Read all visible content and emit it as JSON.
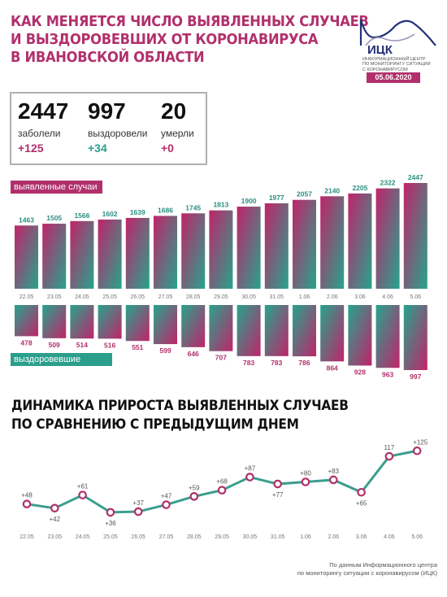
{
  "header": {
    "title_lines": [
      "КАК МЕНЯЕТСЯ ЧИСЛО ВЫЯВЛЕННЫХ СЛУЧАЕВ",
      "И ВЫЗДОРОВЕВШИХ ОТ КОРОНАВИРУСА",
      "В ИВАНОВСКОЙ ОБЛАСТИ"
    ],
    "logo_text": "ИЦК",
    "logo_sub": [
      "ИНФОРМАЦИОННЫЙ ЦЕНТР",
      "ПО МОНИТОРИНГУ СИТУАЦИИ",
      "С КОРОНАВИРУСОМ"
    ],
    "date": "05.06.2020"
  },
  "stats": {
    "cases": {
      "value": "2447",
      "label": "заболели",
      "delta": "+125"
    },
    "recovered": {
      "value": "997",
      "label": "выздоровели",
      "delta": "+34"
    },
    "deaths": {
      "value": "20",
      "label": "умерли",
      "delta": "+0"
    }
  },
  "colors": {
    "magenta": "#b1306c",
    "teal": "#2b9f8c",
    "line": "#3a9e8d"
  },
  "chart_data": [
    {
      "type": "bar",
      "series_labels": {
        "cases": "выявленные случаи",
        "recovered": "выздоровевшие"
      },
      "categories": [
        "22.05",
        "23.05",
        "24.05",
        "25.05",
        "26.05",
        "27.05",
        "28.05",
        "29.05",
        "30.05",
        "31.05",
        "1.06",
        "2.06",
        "3.06",
        "4.06",
        "5.06"
      ],
      "series": [
        {
          "name": "выявленные случаи",
          "values": [
            1463,
            1505,
            1566,
            1602,
            1639,
            1686,
            1745,
            1813,
            1900,
            1977,
            2057,
            2140,
            2205,
            2322,
            2447
          ]
        },
        {
          "name": "выздоровевшие",
          "values": [
            478,
            509,
            514,
            516,
            551,
            599,
            646,
            707,
            783,
            783,
            786,
            864,
            928,
            963,
            997
          ]
        }
      ]
    },
    {
      "type": "line",
      "title_lines": [
        "ДИНАМИКА ПРИРОСТА ВЫЯВЛЕННЫХ СЛУЧАЕВ",
        "ПО СРАВНЕНИЮ С ПРЕДЫДУЩИМ ДНЕМ"
      ],
      "categories": [
        "22.05",
        "23.05",
        "24.05",
        "25.05",
        "26.05",
        "27.05",
        "28.05",
        "29.05",
        "30.05",
        "31.05",
        "1.06",
        "2.06",
        "3.06",
        "4.06",
        "5.06"
      ],
      "values": [
        48,
        42,
        61,
        36,
        37,
        47,
        59,
        68,
        87,
        77,
        80,
        83,
        65,
        117,
        125
      ],
      "labels": [
        "+48",
        "+42",
        "+61",
        "+36",
        "+37",
        "+47",
        "+59",
        "+68",
        "+87",
        "+77",
        "+80",
        "+83",
        "+65",
        "117",
        "+125"
      ]
    }
  ],
  "footer": [
    "По данным Информационного центра",
    "по мониторингу ситуации с коронавирусом (ИЦК)"
  ]
}
